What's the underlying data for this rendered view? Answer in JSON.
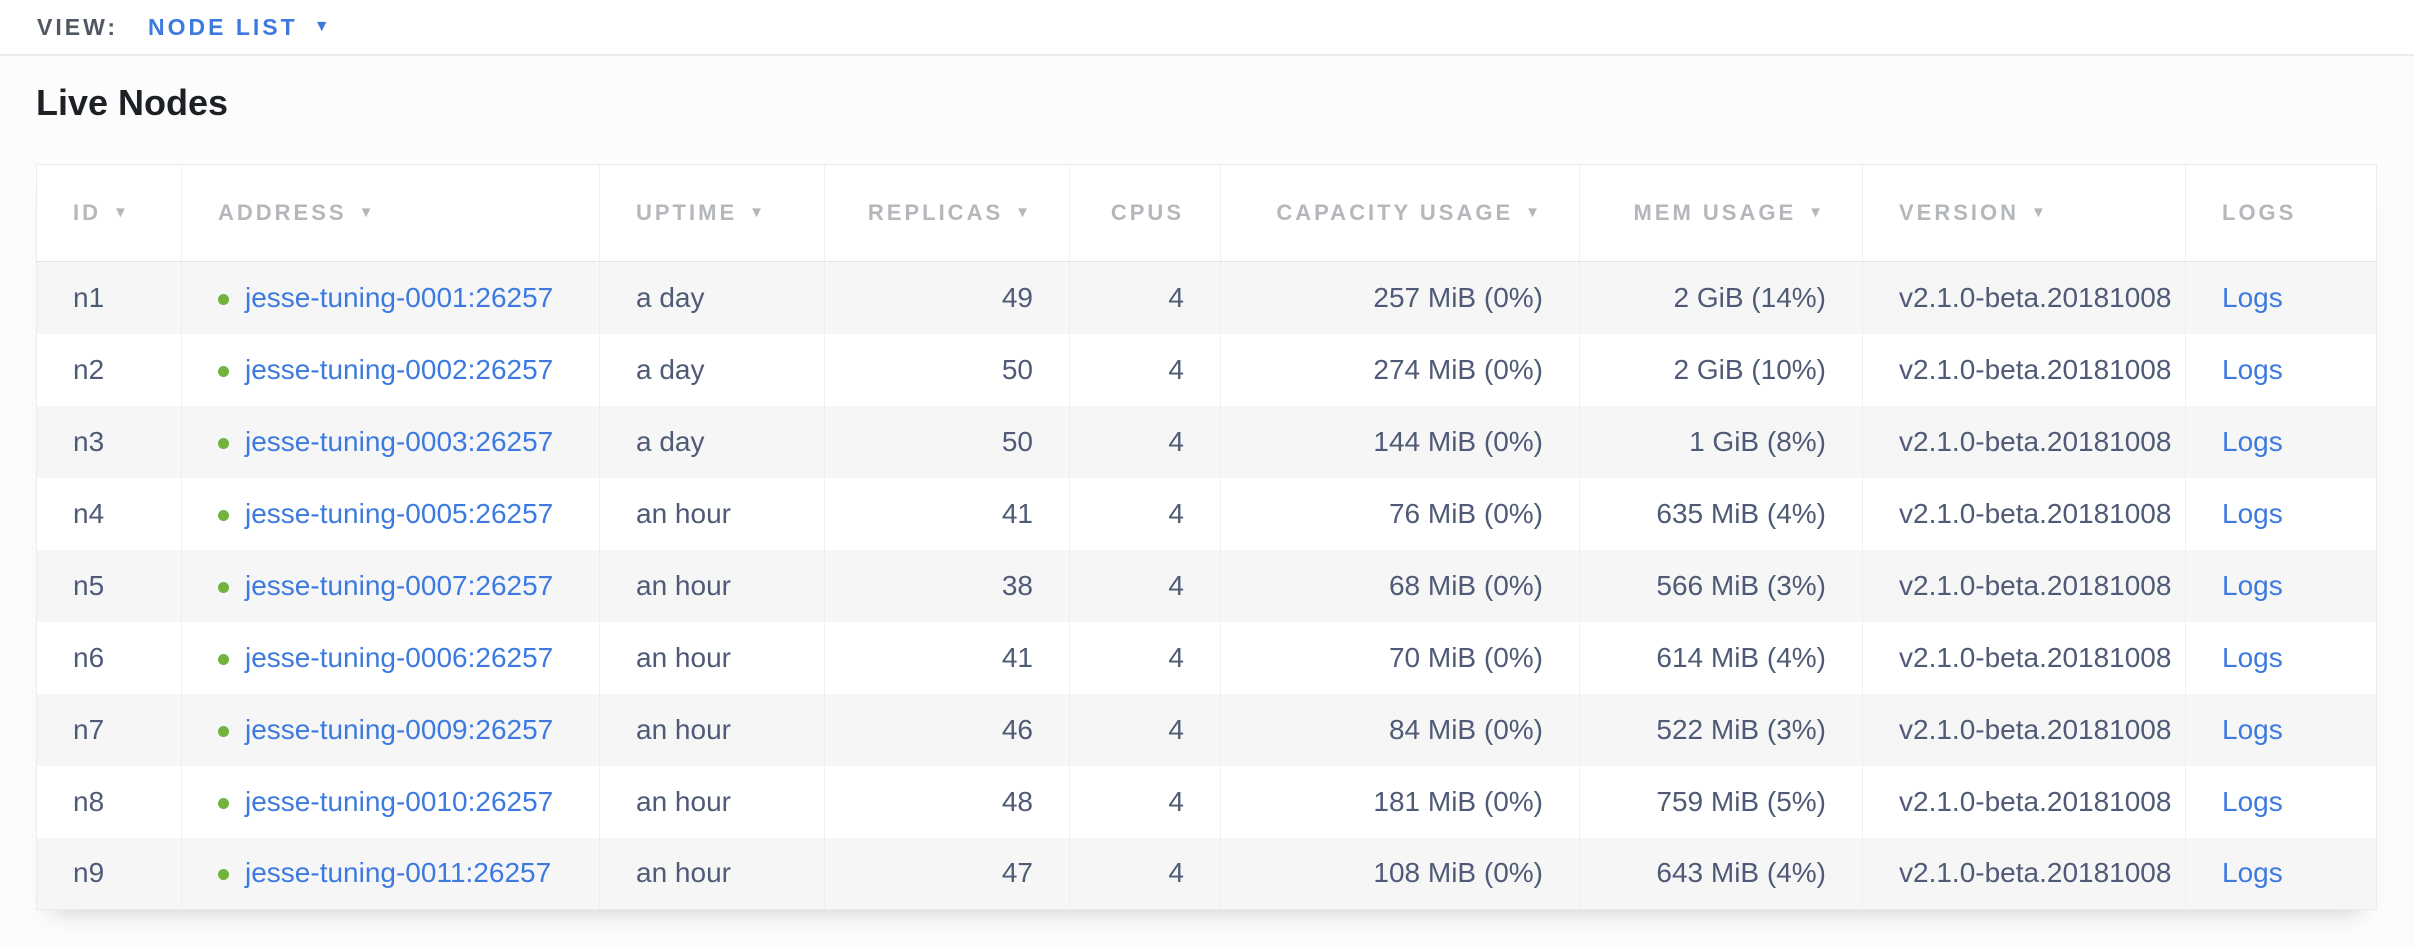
{
  "view_bar": {
    "label": "VIEW:",
    "selected_view": "NODE LIST",
    "dropdown_glyph": "▼"
  },
  "page": {
    "heading": "Live Nodes"
  },
  "colors": {
    "link_blue": "#3d7ae0",
    "status_green": "#71b33c",
    "header_gray": "#b4b7bb",
    "cell_text": "#4f5b76",
    "zebra_row": "#f6f6f7"
  },
  "table": {
    "sort_arrow_glyph": "▼",
    "columns": [
      {
        "key": "id",
        "label": "ID",
        "sort_arrow": true,
        "align": "left"
      },
      {
        "key": "address",
        "label": "ADDRESS",
        "sort_arrow": true,
        "align": "left"
      },
      {
        "key": "uptime",
        "label": "UPTIME",
        "sort_arrow": true,
        "align": "left"
      },
      {
        "key": "replicas",
        "label": "REPLICAS",
        "sort_arrow": true,
        "align": "right"
      },
      {
        "key": "cpus",
        "label": "CPUS",
        "sort_arrow": false,
        "align": "right"
      },
      {
        "key": "capacity",
        "label": "CAPACITY USAGE",
        "sort_arrow": true,
        "align": "right"
      },
      {
        "key": "mem",
        "label": "MEM USAGE",
        "sort_arrow": true,
        "align": "right"
      },
      {
        "key": "version",
        "label": "VERSION",
        "sort_arrow": true,
        "align": "left"
      },
      {
        "key": "logs",
        "label": "LOGS",
        "sort_arrow": false,
        "align": "left"
      }
    ],
    "rows": [
      {
        "id": "n1",
        "status": "live",
        "address": "jesse-tuning-0001:26257",
        "uptime": "a day",
        "replicas": "49",
        "cpus": "4",
        "capacity": "257 MiB (0%)",
        "mem": "2 GiB (14%)",
        "version": "v2.1.0-beta.20181008",
        "logs": "Logs"
      },
      {
        "id": "n2",
        "status": "live",
        "address": "jesse-tuning-0002:26257",
        "uptime": "a day",
        "replicas": "50",
        "cpus": "4",
        "capacity": "274 MiB (0%)",
        "mem": "2 GiB (10%)",
        "version": "v2.1.0-beta.20181008",
        "logs": "Logs"
      },
      {
        "id": "n3",
        "status": "live",
        "address": "jesse-tuning-0003:26257",
        "uptime": "a day",
        "replicas": "50",
        "cpus": "4",
        "capacity": "144 MiB (0%)",
        "mem": "1 GiB (8%)",
        "version": "v2.1.0-beta.20181008",
        "logs": "Logs"
      },
      {
        "id": "n4",
        "status": "live",
        "address": "jesse-tuning-0005:26257",
        "uptime": "an hour",
        "replicas": "41",
        "cpus": "4",
        "capacity": "76 MiB (0%)",
        "mem": "635 MiB (4%)",
        "version": "v2.1.0-beta.20181008",
        "logs": "Logs"
      },
      {
        "id": "n5",
        "status": "live",
        "address": "jesse-tuning-0007:26257",
        "uptime": "an hour",
        "replicas": "38",
        "cpus": "4",
        "capacity": "68 MiB (0%)",
        "mem": "566 MiB (3%)",
        "version": "v2.1.0-beta.20181008",
        "logs": "Logs"
      },
      {
        "id": "n6",
        "status": "live",
        "address": "jesse-tuning-0006:26257",
        "uptime": "an hour",
        "replicas": "41",
        "cpus": "4",
        "capacity": "70 MiB (0%)",
        "mem": "614 MiB (4%)",
        "version": "v2.1.0-beta.20181008",
        "logs": "Logs"
      },
      {
        "id": "n7",
        "status": "live",
        "address": "jesse-tuning-0009:26257",
        "uptime": "an hour",
        "replicas": "46",
        "cpus": "4",
        "capacity": "84 MiB (0%)",
        "mem": "522 MiB (3%)",
        "version": "v2.1.0-beta.20181008",
        "logs": "Logs"
      },
      {
        "id": "n8",
        "status": "live",
        "address": "jesse-tuning-0010:26257",
        "uptime": "an hour",
        "replicas": "48",
        "cpus": "4",
        "capacity": "181 MiB (0%)",
        "mem": "759 MiB (5%)",
        "version": "v2.1.0-beta.20181008",
        "logs": "Logs"
      },
      {
        "id": "n9",
        "status": "live",
        "address": "jesse-tuning-0011:26257",
        "uptime": "an hour",
        "replicas": "47",
        "cpus": "4",
        "capacity": "108 MiB (0%)",
        "mem": "643 MiB (4%)",
        "version": "v2.1.0-beta.20181008",
        "logs": "Logs"
      }
    ]
  }
}
